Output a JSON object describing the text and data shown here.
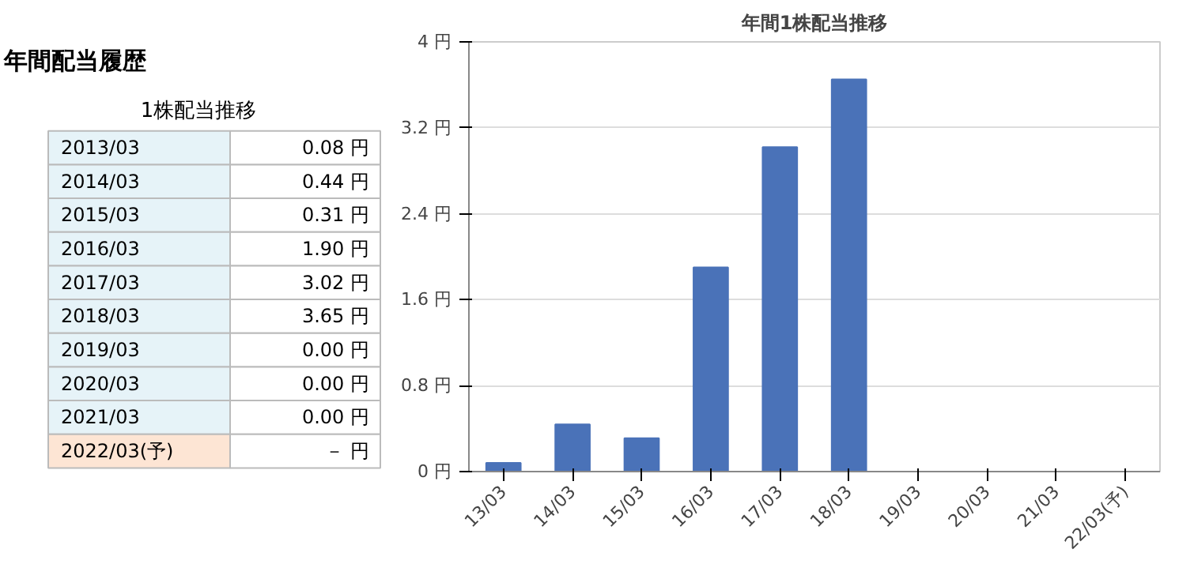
{
  "chart_data": [
    {
      "type": "other",
      "title": "年間配当履歴",
      "subtitle": "1株配当推移",
      "annotations": [
        "2013/03",
        "0.08 円",
        "2014/03",
        "0.44 円",
        "2015/03",
        "0.31 円",
        "2016/03",
        "1.90 円",
        "2017/03",
        "3.02 円",
        "2018/03",
        "3.65 円",
        "2019/03",
        "0.00 円",
        "2020/03",
        "0.00 円",
        "2021/03",
        "0.00 円",
        "2022/03(予)",
        "－ 円"
      ]
    },
    {
      "type": "bar",
      "title": "年間1株配当推移",
      "categories": [
        "13/03",
        "14/03",
        "15/03",
        "16/03",
        "17/03",
        "18/03",
        "19/03",
        "20/03",
        "21/03",
        "22/03(予)"
      ],
      "values": [
        0.08,
        0.44,
        0.31,
        1.9,
        3.02,
        3.65,
        0,
        0,
        0,
        null
      ],
      "color": "#4a72b8",
      "ylim": [
        0,
        4
      ],
      "yticks": [
        {
          "value": 0,
          "label": "0 円"
        },
        {
          "value": 0.8,
          "label": "0.8 円"
        },
        {
          "value": 1.6,
          "label": "1.6 円"
        },
        {
          "value": 2.4,
          "label": "2.4 円"
        },
        {
          "value": 3.2,
          "label": "3.2 円"
        },
        {
          "value": 4,
          "label": "4 円"
        }
      ],
      "grid": "y"
    }
  ]
}
